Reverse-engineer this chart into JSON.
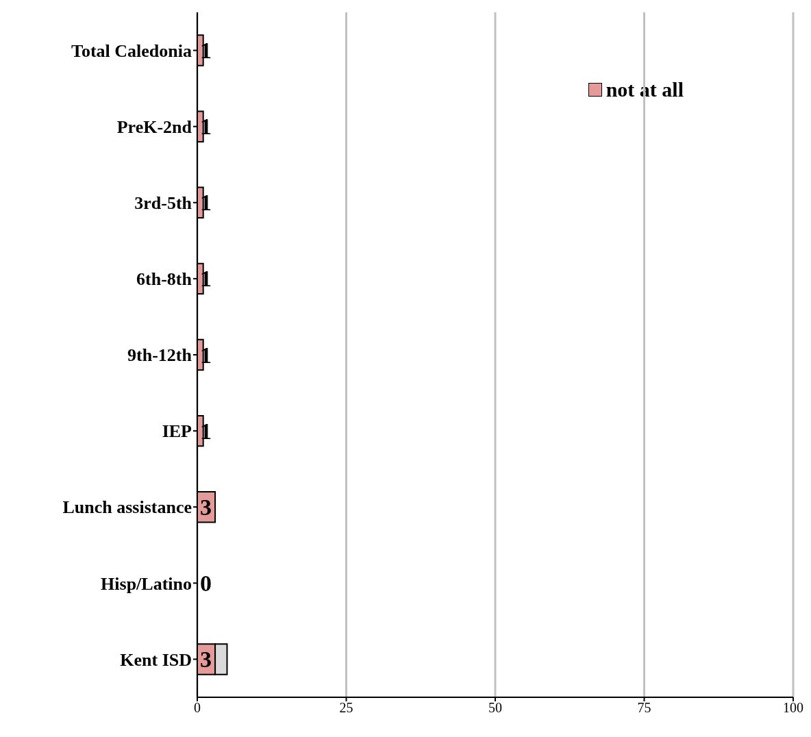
{
  "chart_data": {
    "type": "bar",
    "orientation": "horizontal",
    "stacked": true,
    "categories": [
      "Total Caledonia",
      "PreK-2nd",
      "3rd-5th",
      "6th-8th",
      "9th-12th",
      "IEP",
      "Lunch assistance",
      "Hisp/Latino",
      "Kent ISD"
    ],
    "series": [
      {
        "name": "not at all",
        "color": "#e59a9a",
        "values": [
          1,
          1,
          1,
          1,
          1,
          1,
          3,
          0,
          3
        ],
        "value_labels": [
          "1",
          "1",
          "1",
          "1",
          "1",
          "1",
          "3",
          "0",
          "3"
        ]
      },
      {
        "color": "#d9d9d9",
        "values": [
          null,
          null,
          null,
          null,
          null,
          null,
          null,
          null,
          2
        ]
      }
    ],
    "xlim": [
      0,
      100
    ],
    "xticks": [
      0,
      25,
      50,
      75,
      100
    ],
    "grid": "x",
    "legend": "top right"
  }
}
